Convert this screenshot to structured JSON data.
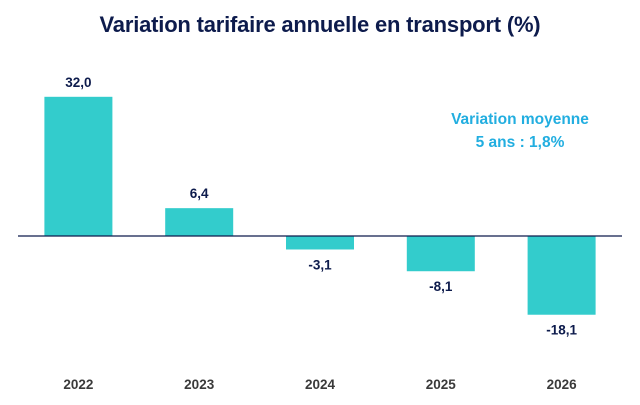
{
  "chart_data": {
    "type": "bar",
    "title": "Variation tarifaire annuelle en transport (%)",
    "categories": [
      "2022",
      "2023",
      "2024",
      "2025",
      "2026"
    ],
    "values": [
      32.0,
      6.4,
      -3.1,
      -8.1,
      -18.1
    ],
    "value_labels": [
      "32,0",
      "6,4",
      "-3,1",
      "-8,1",
      "-18,1"
    ],
    "annotation": [
      "Variation moyenne",
      "5 ans : 1,8%"
    ],
    "xlabel": "",
    "ylabel": "",
    "ylim": [
      -25,
      35
    ],
    "grid": false,
    "legend": "none",
    "colors": {
      "bar": "#33cccc",
      "title": "#0d1b4c",
      "annotation": "#22aee0",
      "axis": "#0d1b4c"
    }
  }
}
